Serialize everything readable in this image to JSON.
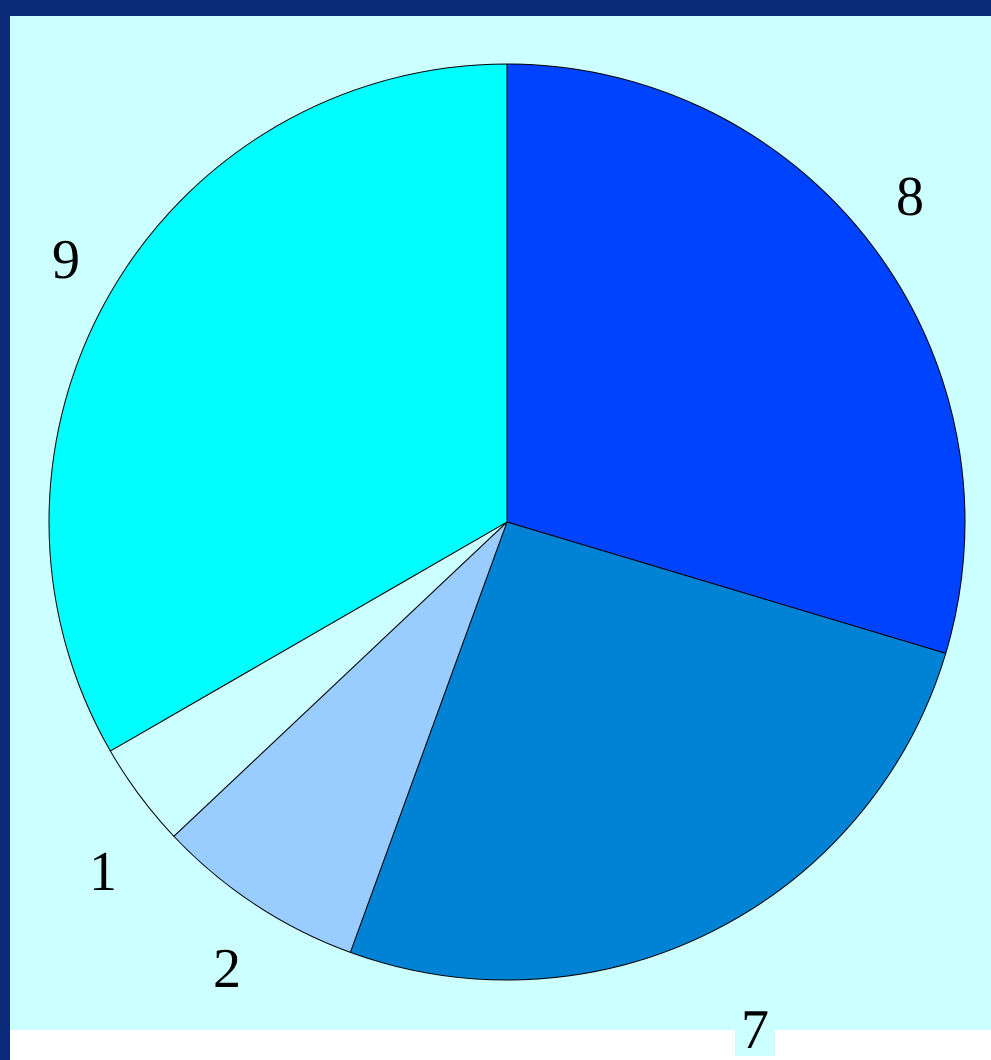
{
  "chart_data": {
    "type": "pie",
    "start_angle": "12 o'clock",
    "direction": "clockwise",
    "slices": [
      {
        "label": "8",
        "value": 8,
        "color": "#0043ff"
      },
      {
        "label": "7",
        "value": 7,
        "color": "#0083d4"
      },
      {
        "label": "2",
        "value": 2,
        "color": "#99ccff"
      },
      {
        "label": "1",
        "value": 1,
        "color": "#ccffff"
      },
      {
        "label": "9",
        "value": 9,
        "color": "#00ffff"
      }
    ],
    "background_color": "#ccffff",
    "frame_color": "#0b2a78",
    "legend": "none"
  }
}
